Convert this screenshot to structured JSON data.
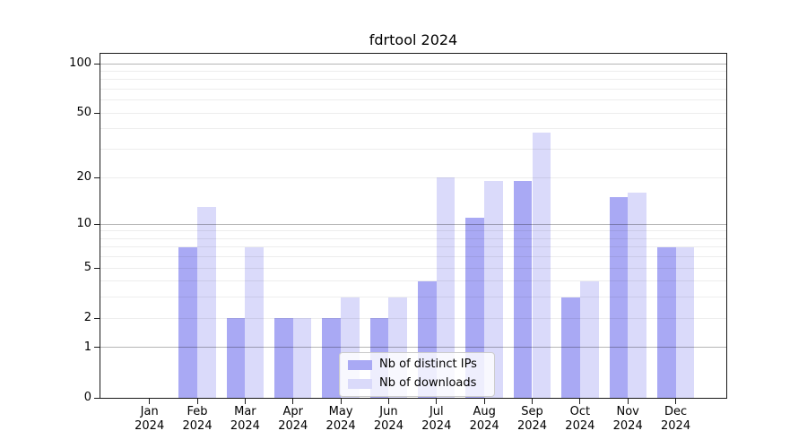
{
  "chart_data": {
    "type": "bar",
    "title": "fdrtool 2024",
    "scale": "log1p",
    "grid": "on",
    "legend_position": "lower center",
    "year": "2024",
    "categories": [
      "Jan",
      "Feb",
      "Mar",
      "Apr",
      "May",
      "Jun",
      "Jul",
      "Aug",
      "Sep",
      "Oct",
      "Nov",
      "Dec"
    ],
    "series": [
      {
        "name": "Nb of distinct IPs",
        "color": "#a9a9f4",
        "values": [
          0,
          7,
          2,
          2,
          2,
          2,
          4,
          11,
          19,
          3,
          15,
          7
        ]
      },
      {
        "name": "Nb of downloads",
        "color": "#dadafa",
        "values": [
          0,
          13,
          7,
          2,
          3,
          3,
          20,
          19,
          38,
          4,
          16,
          7
        ]
      }
    ],
    "y_ticks": [
      0,
      1,
      2,
      5,
      10,
      20,
      50,
      100
    ],
    "ylim": [
      0,
      116
    ],
    "gridlines": {
      "major": [
        1,
        10,
        100
      ],
      "minor": [
        2,
        3,
        4,
        5,
        6,
        7,
        8,
        9,
        20,
        30,
        40,
        50,
        60,
        70,
        80,
        90
      ]
    }
  }
}
